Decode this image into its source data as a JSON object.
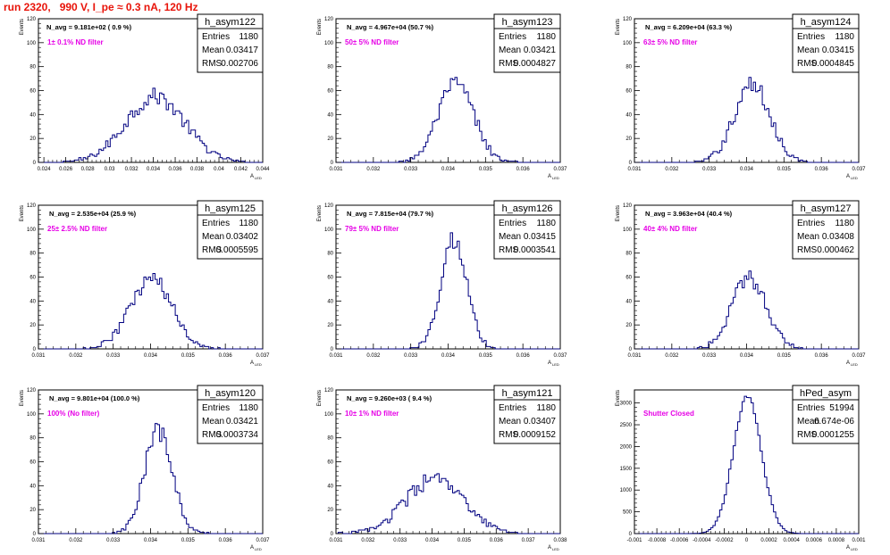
{
  "canvas": {
    "title": "run 2320,   990 V, I_pe ≈ 0.3 nA, 120 Hz"
  },
  "colors": {
    "title": "#e8140a",
    "annotation": "#e600e6",
    "histogram_line": "#000080",
    "axis": "#000000"
  },
  "stat_labels": {
    "entries": "Entries",
    "mean": "Mean",
    "rms": "RMS"
  },
  "chart_data": [
    {
      "type": "histogram",
      "name": "h_asym122",
      "n_avg": "N_avg = 9.181e+02 ( 0.9 %)",
      "filter": "1± 0.1% ND filter",
      "stats": {
        "entries": "1180",
        "mean": "0.03417",
        "rms": "0.002706"
      },
      "ylabel": "Events",
      "xlabel": "A_LED",
      "xlim": [
        0.0235,
        0.044
      ],
      "ylim": [
        0,
        120
      ],
      "xticks": [
        "0.024",
        "0.026",
        "0.028",
        "0.03",
        "0.032",
        "0.034",
        "0.036",
        "0.038",
        "0.04",
        "0.042",
        "0.044"
      ],
      "xtick_values": [
        0.024,
        0.026,
        0.028,
        0.03,
        0.032,
        0.034,
        0.036,
        0.038,
        0.04,
        0.042,
        0.044
      ],
      "yticks": [
        0,
        20,
        40,
        60,
        80,
        100,
        120
      ],
      "mean_value": 0.03417,
      "sigma": 0.0027,
      "peak": 55,
      "n_bins": 100
    },
    {
      "type": "histogram",
      "name": "h_asym123",
      "n_avg": "N_avg = 4.967e+04 (50.7 %)",
      "filter": "50± 5% ND filter",
      "stats": {
        "entries": "1180",
        "mean": "0.03421",
        "rms": "0.0004827"
      },
      "ylabel": "Events",
      "xlabel": "A_LED",
      "xlim": [
        0.031,
        0.037
      ],
      "ylim": [
        0,
        120
      ],
      "xticks": [
        "0.031",
        "0.032",
        "0.033",
        "0.034",
        "0.035",
        "0.036",
        "0.037"
      ],
      "xtick_values": [
        0.031,
        0.032,
        0.033,
        0.034,
        0.035,
        0.036,
        0.037
      ],
      "yticks": [
        0,
        20,
        40,
        60,
        80,
        100,
        120
      ],
      "mean_value": 0.03421,
      "sigma": 0.00048,
      "peak": 65,
      "n_bins": 100
    },
    {
      "type": "histogram",
      "name": "h_asym124",
      "n_avg": "N_avg = 6.209e+04 (63.3 %)",
      "filter": "63± 5% ND filter",
      "stats": {
        "entries": "1180",
        "mean": "0.03415",
        "rms": "0.0004845"
      },
      "ylabel": "Events",
      "xlabel": "A_LED",
      "xlim": [
        0.031,
        0.037
      ],
      "ylim": [
        0,
        120
      ],
      "xticks": [
        "0.031",
        "0.032",
        "0.033",
        "0.034",
        "0.035",
        "0.036",
        "0.037"
      ],
      "xtick_values": [
        0.031,
        0.032,
        0.033,
        0.034,
        0.035,
        0.036,
        0.037
      ],
      "yticks": [
        0,
        20,
        40,
        60,
        80,
        100,
        120
      ],
      "mean_value": 0.03415,
      "sigma": 0.00048,
      "peak": 65,
      "n_bins": 100
    },
    {
      "type": "histogram",
      "name": "h_asym125",
      "n_avg": "N_avg = 2.535e+04 (25.9 %)",
      "filter": "25± 2.5% ND filter",
      "stats": {
        "entries": "1180",
        "mean": "0.03402",
        "rms": "0.0005595"
      },
      "ylabel": "Events",
      "xlabel": "A_LED",
      "xlim": [
        0.031,
        0.037
      ],
      "ylim": [
        0,
        120
      ],
      "xticks": [
        "0.031",
        "0.032",
        "0.033",
        "0.034",
        "0.035",
        "0.036",
        "0.037"
      ],
      "xtick_values": [
        0.031,
        0.032,
        0.033,
        0.034,
        0.035,
        0.036,
        0.037
      ],
      "yticks": [
        0,
        20,
        40,
        60,
        80,
        100,
        120
      ],
      "mean_value": 0.03402,
      "sigma": 0.00056,
      "peak": 58,
      "n_bins": 100
    },
    {
      "type": "histogram",
      "name": "h_asym126",
      "n_avg": "N_avg = 7.815e+04 (79.7 %)",
      "filter": "79± 5% ND filter",
      "stats": {
        "entries": "1180",
        "mean": "0.03415",
        "rms": "0.0003541"
      },
      "ylabel": "Events",
      "xlabel": "A_LED",
      "xlim": [
        0.031,
        0.037
      ],
      "ylim": [
        0,
        120
      ],
      "xticks": [
        "0.031",
        "0.032",
        "0.033",
        "0.034",
        "0.035",
        "0.036",
        "0.037"
      ],
      "xtick_values": [
        0.031,
        0.032,
        0.033,
        0.034,
        0.035,
        0.036,
        0.037
      ],
      "yticks": [
        0,
        20,
        40,
        60,
        80,
        100,
        120
      ],
      "mean_value": 0.03415,
      "sigma": 0.00035,
      "peak": 92,
      "n_bins": 100
    },
    {
      "type": "histogram",
      "name": "h_asym127",
      "n_avg": "N_avg = 3.963e+04 (40.4 %)",
      "filter": "40± 4% ND filter",
      "stats": {
        "entries": "1180",
        "mean": "0.03408",
        "rms": "0.000462"
      },
      "ylabel": "Events",
      "xlabel": "A_LED",
      "xlim": [
        0.031,
        0.037
      ],
      "ylim": [
        0,
        120
      ],
      "xticks": [
        "0.031",
        "0.032",
        "0.033",
        "0.034",
        "0.035",
        "0.036",
        "0.037"
      ],
      "xtick_values": [
        0.031,
        0.032,
        0.033,
        0.034,
        0.035,
        0.036,
        0.037
      ],
      "yticks": [
        0,
        20,
        40,
        60,
        80,
        100,
        120
      ],
      "mean_value": 0.03408,
      "sigma": 0.00046,
      "peak": 60,
      "n_bins": 100
    },
    {
      "type": "histogram",
      "name": "h_asym120",
      "n_avg": "N_avg = 9.801e+04 (100.0 %)",
      "filter": "100% (No filter)",
      "stats": {
        "entries": "1180",
        "mean": "0.03421",
        "rms": "0.0003734"
      },
      "ylabel": "Events",
      "xlabel": "A_LED",
      "xlim": [
        0.031,
        0.037
      ],
      "ylim": [
        0,
        120
      ],
      "xticks": [
        "0.031",
        "0.032",
        "0.033",
        "0.034",
        "0.035",
        "0.036",
        "0.037"
      ],
      "xtick_values": [
        0.031,
        0.032,
        0.033,
        0.034,
        0.035,
        0.036,
        0.037
      ],
      "yticks": [
        0,
        20,
        40,
        60,
        80,
        100,
        120
      ],
      "mean_value": 0.03421,
      "sigma": 0.00037,
      "peak": 85,
      "n_bins": 100
    },
    {
      "type": "histogram",
      "name": "h_asym121",
      "n_avg": "N_avg = 9.260e+03 ( 9.4 %)",
      "filter": "10± 1% ND filter",
      "stats": {
        "entries": "1180",
        "mean": "0.03407",
        "rms": "0.0009152"
      },
      "ylabel": "Events",
      "xlabel": "A_LED",
      "xlim": [
        0.031,
        0.038
      ],
      "ylim": [
        0,
        120
      ],
      "xticks": [
        "0.031",
        "0.032",
        "0.033",
        "0.034",
        "0.035",
        "0.036",
        "0.037",
        "0.038"
      ],
      "xtick_values": [
        0.031,
        0.032,
        0.033,
        0.034,
        0.035,
        0.036,
        0.037,
        0.038
      ],
      "yticks": [
        0,
        20,
        40,
        60,
        80,
        100,
        120
      ],
      "mean_value": 0.03407,
      "sigma": 0.0009,
      "peak": 45,
      "n_bins": 100
    },
    {
      "type": "histogram",
      "name": "hPed_asym",
      "n_avg": "",
      "filter": "Shutter Closed",
      "stats": {
        "entries": "51994",
        "mean": "6.674e-06",
        "rms": "0.0001255"
      },
      "ylabel": "Events",
      "xlabel": "A_LED",
      "xlim": [
        -0.001,
        0.001
      ],
      "ylim": [
        0,
        3300
      ],
      "xticks": [
        "-0.001",
        "-0.0008",
        "-0.0006",
        "-0.0004",
        "-0.0002",
        "0",
        "0.0002",
        "0.0004",
        "0.0006",
        "0.0008",
        "0.001"
      ],
      "xtick_values": [
        -0.001,
        -0.0008,
        -0.0006,
        -0.0004,
        -0.0002,
        0,
        0.0002,
        0.0004,
        0.0006,
        0.0008,
        0.001
      ],
      "yticks": [
        0,
        500,
        1000,
        1500,
        2000,
        2500,
        3000
      ],
      "mean_value": 6.7e-06,
      "sigma": 0.000125,
      "peak": 3150,
      "n_bins": 100
    }
  ]
}
